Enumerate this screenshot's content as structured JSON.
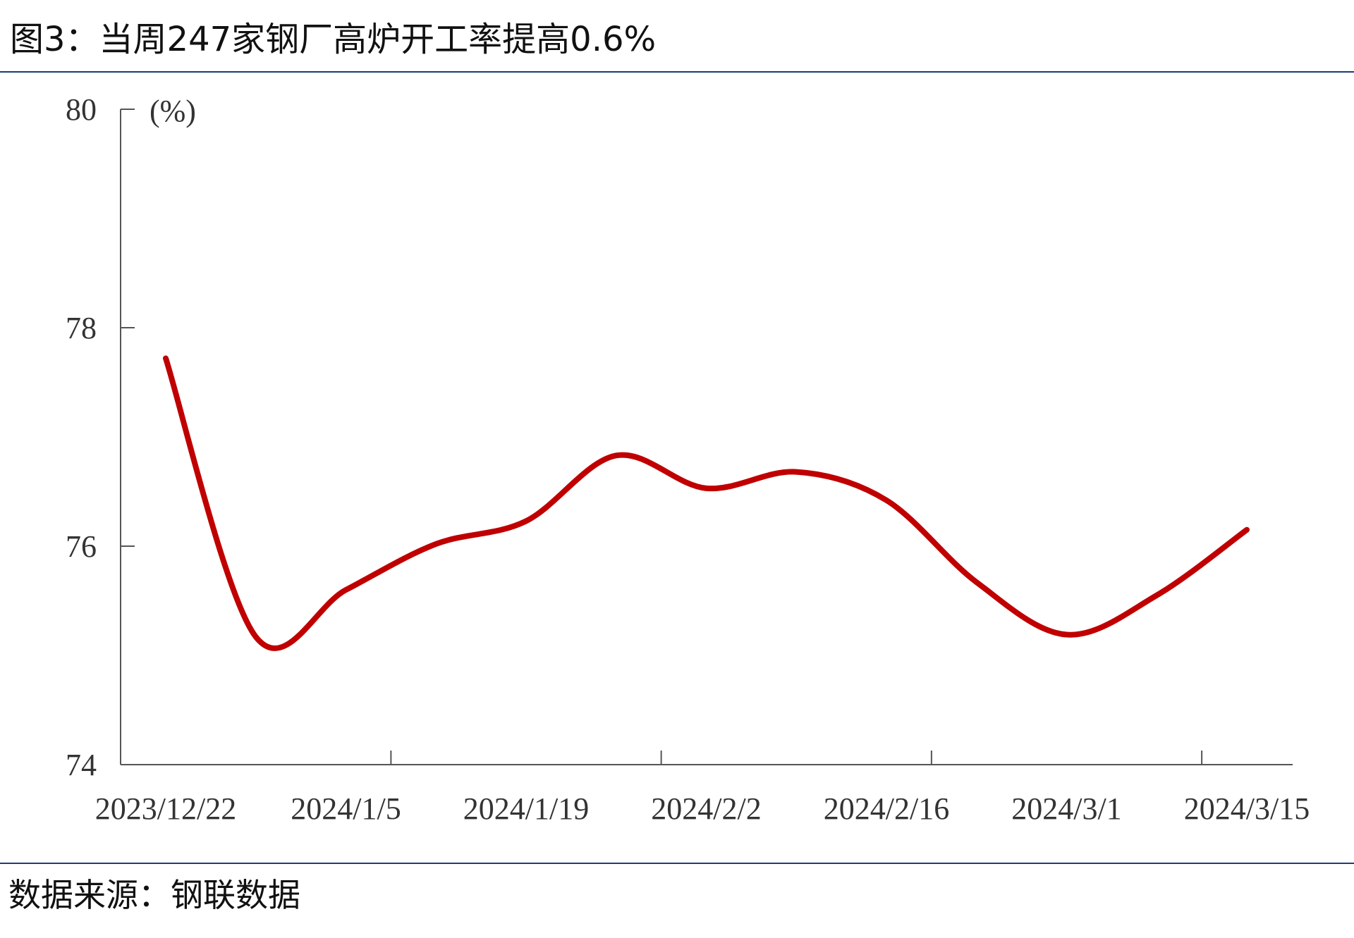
{
  "chart_data": {
    "type": "line",
    "title": "图3：当周247家钢厂高炉开工率提高0.6%",
    "source": "数据来源：钢联数据",
    "y_label": "(%)",
    "categories": [
      "2023/12/22",
      null,
      "2024/1/5",
      null,
      "2024/1/19",
      null,
      "2024/2/2",
      null,
      "2024/2/16",
      null,
      "2024/3/1",
      null,
      "2024/3/15"
    ],
    "series": [
      {
        "name": "高炉开工率",
        "color": "#c00000",
        "values": [
          77.72,
          75.17,
          75.6,
          76.02,
          76.23,
          76.83,
          76.53,
          76.68,
          76.42,
          75.67,
          75.19,
          75.55,
          76.15
        ]
      }
    ],
    "ylim": [
      74,
      80
    ],
    "yticks": [
      74,
      76,
      78,
      80
    ],
    "grid": false
  }
}
